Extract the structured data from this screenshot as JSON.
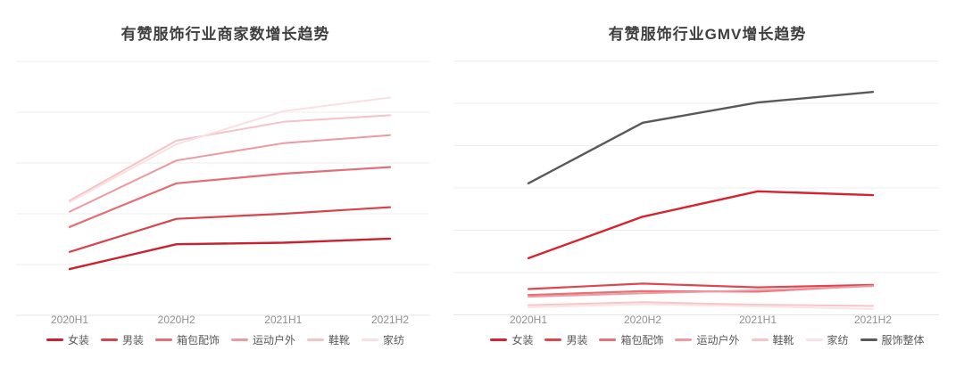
{
  "page": {
    "background": "#ffffff"
  },
  "colors": {
    "grid": "#ededed",
    "axis": "#e5e5e5",
    "tick_text": "#8f8f8f",
    "legend_text": "#595959",
    "title_text": "#3f3f3f"
  },
  "chart_data": [
    {
      "id": "merchant-growth",
      "type": "line",
      "title": "有赞服饰行业商家数增长趋势",
      "xlabel": "",
      "ylabel": "",
      "categories": [
        "2020H1",
        "2020H2",
        "2021H1",
        "2021H2"
      ],
      "ylim": [
        0,
        5.3
      ],
      "grid": true,
      "y_tick_labels_visible": false,
      "legend_position": "bottom",
      "series": [
        {
          "name": "女装",
          "slug": "womens-wear",
          "color": "#c9222e",
          "width": 2.4,
          "values": [
            0.91,
            1.4,
            1.43,
            1.51
          ]
        },
        {
          "name": "男装",
          "slug": "mens-wear",
          "color": "#d6454e",
          "width": 2.2,
          "values": [
            1.25,
            1.9,
            2.0,
            2.13
          ]
        },
        {
          "name": "箱包配饰",
          "slug": "bags-accessories",
          "color": "#e26e76",
          "width": 2.2,
          "values": [
            1.74,
            2.6,
            2.79,
            2.92
          ]
        },
        {
          "name": "运动户外",
          "slug": "sports-outdoor",
          "color": "#ec99a0",
          "width": 2.0,
          "values": [
            2.04,
            3.05,
            3.39,
            3.55
          ]
        },
        {
          "name": "鞋靴",
          "slug": "footwear",
          "color": "#f5c2c6",
          "width": 2.0,
          "values": [
            2.26,
            3.44,
            3.81,
            3.94
          ]
        },
        {
          "name": "家纺",
          "slug": "home-textiles",
          "color": "#fae0e2",
          "width": 2.0,
          "values": [
            2.23,
            3.37,
            4.02,
            4.29
          ]
        }
      ]
    },
    {
      "id": "gmv-growth",
      "type": "line",
      "title": "有赞服饰行业GMV增长趋势",
      "xlabel": "",
      "ylabel": "",
      "categories": [
        "2020H1",
        "2020H2",
        "2021H1",
        "2021H2"
      ],
      "ylim": [
        0,
        6.3
      ],
      "grid": true,
      "y_tick_labels_visible": false,
      "legend_position": "bottom",
      "series": [
        {
          "name": "女装",
          "slug": "womens-wear",
          "color": "#d7232f",
          "width": 2.4,
          "values": [
            1.34,
            2.32,
            2.92,
            2.83
          ]
        },
        {
          "name": "男装",
          "slug": "mens-wear",
          "color": "#dd4850",
          "width": 2.2,
          "values": [
            0.61,
            0.74,
            0.65,
            0.71
          ]
        },
        {
          "name": "箱包配饰",
          "slug": "bags-accessories",
          "color": "#e67078",
          "width": 2.2,
          "values": [
            0.47,
            0.56,
            0.55,
            0.69
          ]
        },
        {
          "name": "运动户外",
          "slug": "sports-outdoor",
          "color": "#ee9aa0",
          "width": 2.0,
          "values": [
            0.43,
            0.51,
            0.58,
            0.68
          ]
        },
        {
          "name": "鞋靴",
          "slug": "footwear",
          "color": "#f6c5c8",
          "width": 2.0,
          "values": [
            0.23,
            0.3,
            0.24,
            0.21
          ]
        },
        {
          "name": "家纺",
          "slug": "home-textiles",
          "color": "#fbe3e5",
          "width": 2.0,
          "values": [
            0.18,
            0.25,
            0.2,
            0.14
          ]
        },
        {
          "name": "服饰整体",
          "slug": "apparel-overall",
          "color": "#595959",
          "width": 2.4,
          "values": [
            3.11,
            4.54,
            5.02,
            5.27
          ]
        }
      ]
    }
  ]
}
